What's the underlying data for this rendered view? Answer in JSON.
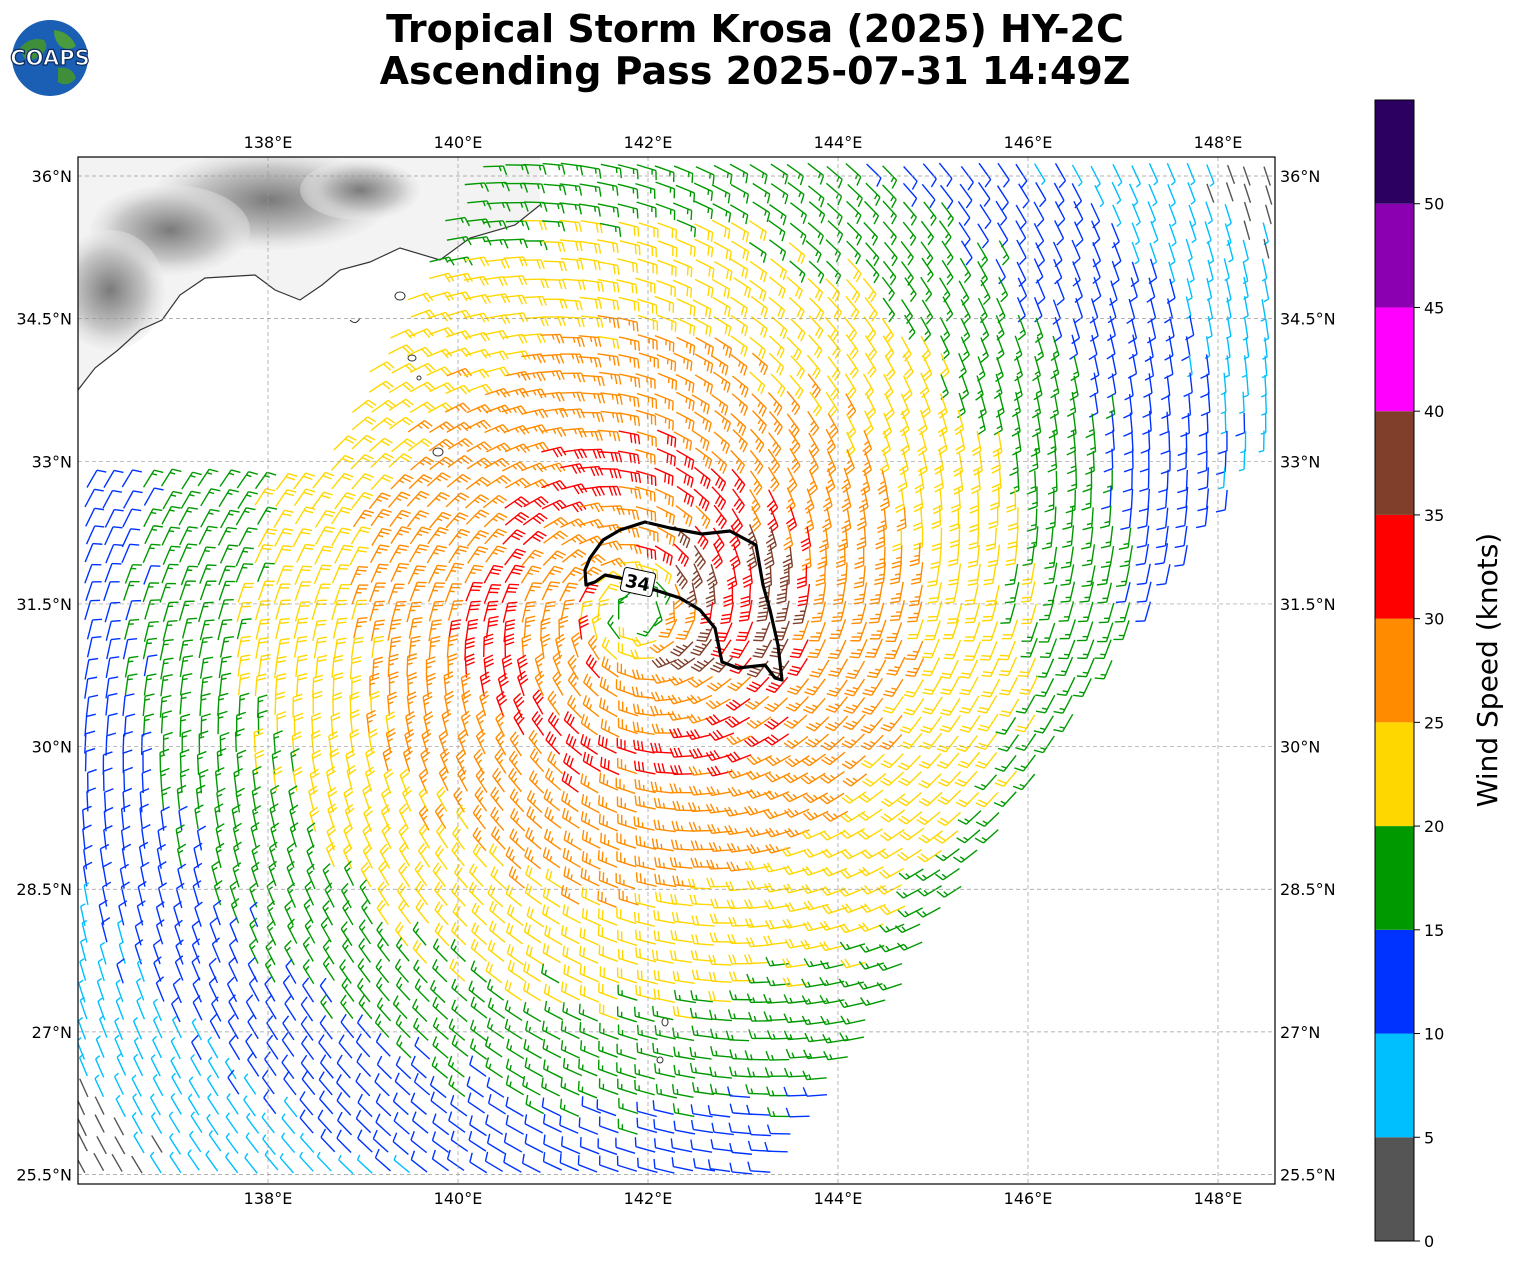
{
  "title_line1": "Tropical Storm Krosa (2025) HY-2C",
  "title_line2": "Ascending Pass 2025-07-31 14:49Z",
  "logo_text": "COAPS",
  "map": {
    "lon_range": [
      136.0,
      148.6
    ],
    "lat_range": [
      25.4,
      36.2
    ],
    "lon_ticks": [
      "138°E",
      "140°E",
      "142°E",
      "144°E",
      "146°E",
      "148°E"
    ],
    "lat_ticks": [
      "36°N",
      "34.5°N",
      "33°N",
      "31.5°N",
      "30°N",
      "28.5°N",
      "27°N",
      "25.5°N"
    ],
    "storm_center": {
      "lon": 141.9,
      "lat": 31.4
    },
    "contour_label": "34",
    "swath_edge_color": "#ffffff"
  },
  "colorbar": {
    "label": "Wind Speed (knots)",
    "tick_labels": [
      "0",
      "5",
      "10",
      "15",
      "20",
      "25",
      "30",
      "35",
      "40",
      "45",
      "50"
    ],
    "bins": [
      {
        "min": 0,
        "max": 5,
        "color": "#555555"
      },
      {
        "min": 5,
        "max": 10,
        "color": "#00bfff"
      },
      {
        "min": 10,
        "max": 15,
        "color": "#0033ff"
      },
      {
        "min": 15,
        "max": 20,
        "color": "#009900"
      },
      {
        "min": 20,
        "max": 25,
        "color": "#ffd700"
      },
      {
        "min": 25,
        "max": 30,
        "color": "#ff8c00"
      },
      {
        "min": 30,
        "max": 35,
        "color": "#ff0000"
      },
      {
        "min": 35,
        "max": 40,
        "color": "#7f3f2a"
      },
      {
        "min": 40,
        "max": 45,
        "color": "#ff00ff"
      },
      {
        "min": 45,
        "max": 50,
        "color": "#8b00b0"
      },
      {
        "min": 50,
        "max": 55,
        "color": "#2b0060"
      }
    ]
  }
}
